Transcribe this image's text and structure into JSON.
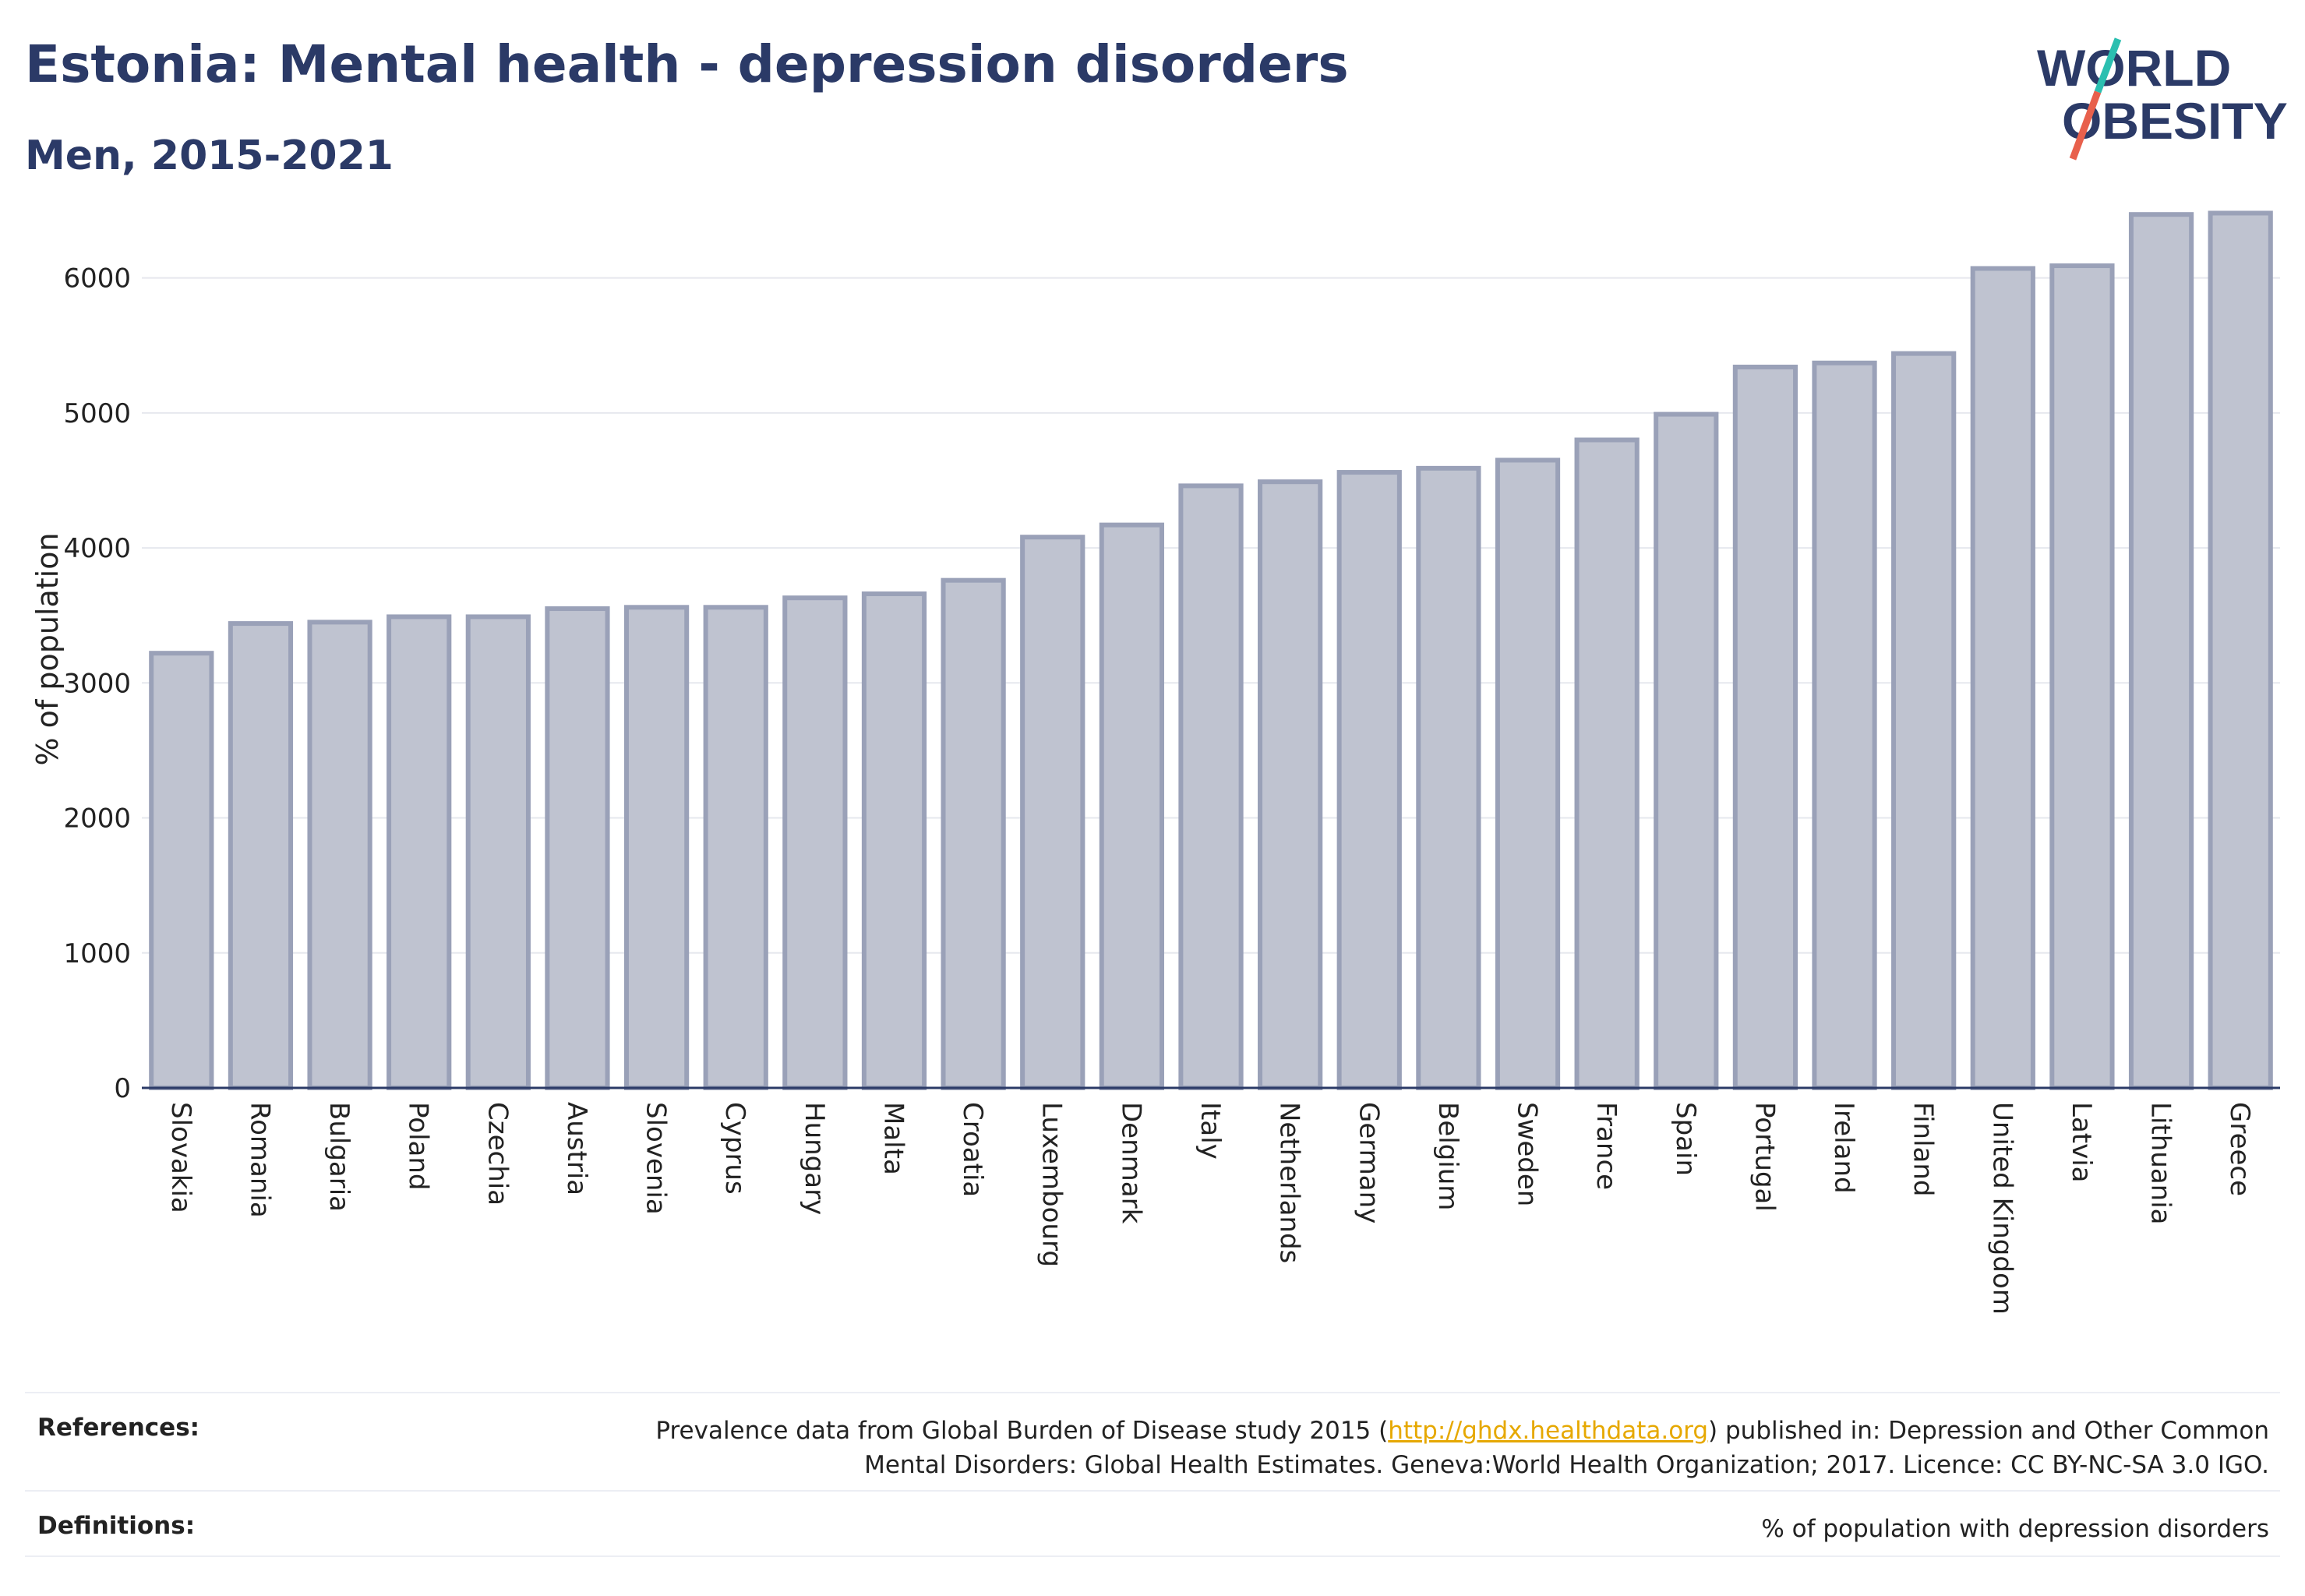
{
  "header": {
    "title": "Estonia: Mental health - depression disorders",
    "subtitle": "Men, 2015-2021"
  },
  "logo": {
    "line1": "WORLD",
    "line2": "OBESITY",
    "text_color": "#2b3a67",
    "slash_top_color": "#2bbfb0",
    "slash_bottom_color": "#e8604c"
  },
  "colors": {
    "bar_fill": "#bfc3d0",
    "bar_stroke": "#9aa1b8",
    "grid": "#e6e8ee",
    "axis": "#2b3a67"
  },
  "chart_data": {
    "type": "bar",
    "title": "",
    "xlabel": "",
    "ylabel": "% of population",
    "ylim": [
      0,
      6500
    ],
    "yticks": [
      0,
      1000,
      2000,
      3000,
      4000,
      5000,
      6000
    ],
    "grid": true,
    "categories": [
      "Slovakia",
      "Romania",
      "Bulgaria",
      "Poland",
      "Czechia",
      "Austria",
      "Slovenia",
      "Cyprus",
      "Hungary",
      "Malta",
      "Croatia",
      "Luxembourg",
      "Denmark",
      "Italy",
      "Netherlands",
      "Germany",
      "Belgium",
      "Sweden",
      "France",
      "Spain",
      "Portugal",
      "Ireland",
      "Finland",
      "United Kingdom",
      "Latvia",
      "Lithuania",
      "Greece"
    ],
    "values": [
      3220,
      3440,
      3450,
      3490,
      3490,
      3550,
      3560,
      3560,
      3630,
      3660,
      3760,
      4080,
      4170,
      4460,
      4490,
      4560,
      4590,
      4650,
      4800,
      4990,
      5340,
      5370,
      5440,
      6070,
      6090,
      6470,
      6480
    ]
  },
  "footer": {
    "references_label": "References:",
    "references_text_before": "Prevalence data from Global Burden of Disease study 2015 (",
    "references_link": "http://ghdx.healthdata.org",
    "references_text_after": ") published in: Depression and Other Common",
    "references_line2": "Mental Disorders: Global Health Estimates. Geneva:World Health Organization; 2017. Licence: CC BY-NC-SA 3.0 IGO.",
    "definitions_label": "Definitions:",
    "definitions_text": "% of population with depression disorders"
  }
}
